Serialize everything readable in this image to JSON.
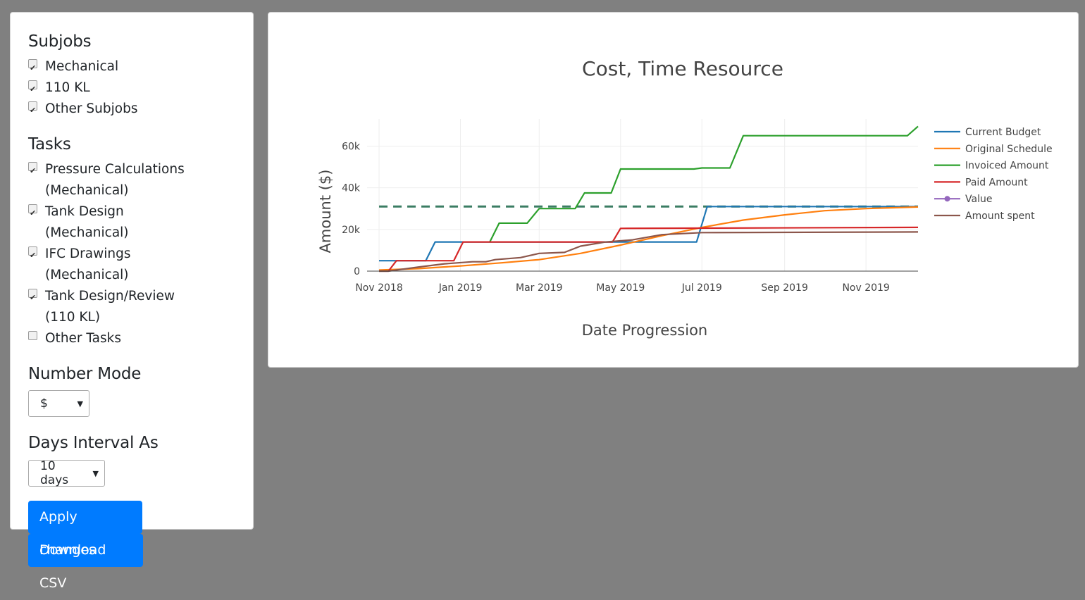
{
  "sidebar": {
    "subjobs": {
      "title": "Subjobs",
      "items": [
        {
          "label": "Mechanical",
          "checked": true
        },
        {
          "label": "110 KL",
          "checked": true
        },
        {
          "label": "Other Subjobs",
          "checked": true
        }
      ]
    },
    "tasks": {
      "title": "Tasks",
      "items": [
        {
          "label": "Pressure Calculations (Mechanical)",
          "checked": true
        },
        {
          "label": "Tank Design (Mechanical)",
          "checked": true
        },
        {
          "label": "IFC Drawings (Mechanical)",
          "checked": true
        },
        {
          "label": "Tank Design/Review (110 KL)",
          "checked": true
        },
        {
          "label": "Other Tasks",
          "checked": false
        }
      ]
    },
    "number_mode": {
      "title": "Number Mode",
      "selected": "$"
    },
    "days_interval": {
      "title": "Days Interval As",
      "selected": "10 days"
    },
    "buttons": {
      "apply": "Apply changes",
      "download": "Download CSV"
    }
  },
  "chart_data": {
    "type": "line",
    "title": "Cost, Time Resource",
    "xlabel": "Date Progression",
    "ylabel": "Amount ($)",
    "ylim": [
      0,
      73000
    ],
    "yticks": [
      0,
      20000,
      40000,
      60000
    ],
    "ytick_labels": [
      "0",
      "20k",
      "40k",
      "60k"
    ],
    "xtick_labels": [
      "Nov 2018",
      "Jan 2019",
      "Mar 2019",
      "May 2019",
      "Jul 2019",
      "Sep 2019",
      "Nov 2019"
    ],
    "x_range": [
      "2018-10-23",
      "2019-12-10"
    ],
    "grid": true,
    "legend_position": "right",
    "reference_line": {
      "value": 31000,
      "style": "dashed",
      "color": "#3b7d63"
    },
    "series": [
      {
        "name": "Current Budget",
        "color": "#1f77b4",
        "points": [
          [
            "2018-11-01",
            5000
          ],
          [
            "2018-12-06",
            5000
          ],
          [
            "2018-12-13",
            14000
          ],
          [
            "2019-06-27",
            14000
          ],
          [
            "2019-07-05",
            31000
          ],
          [
            "2019-12-10",
            31000
          ]
        ]
      },
      {
        "name": "Original Schedule",
        "color": "#ff7f0e",
        "points": [
          [
            "2018-11-01",
            500
          ],
          [
            "2018-12-01",
            1200
          ],
          [
            "2019-01-01",
            2500
          ],
          [
            "2019-02-01",
            4000
          ],
          [
            "2019-03-01",
            5500
          ],
          [
            "2019-04-01",
            8500
          ],
          [
            "2019-05-01",
            12500
          ],
          [
            "2019-06-01",
            17000
          ],
          [
            "2019-07-01",
            21000
          ],
          [
            "2019-08-01",
            24500
          ],
          [
            "2019-09-01",
            27000
          ],
          [
            "2019-10-01",
            29000
          ],
          [
            "2019-11-01",
            30000
          ],
          [
            "2019-12-10",
            30800
          ]
        ]
      },
      {
        "name": "Invoiced Amount",
        "color": "#2ca02c",
        "points": [
          [
            "2019-01-23",
            14000
          ],
          [
            "2019-01-30",
            23000
          ],
          [
            "2019-02-20",
            23000
          ],
          [
            "2019-03-01",
            30000
          ],
          [
            "2019-03-28",
            30000
          ],
          [
            "2019-04-04",
            37500
          ],
          [
            "2019-04-24",
            37500
          ],
          [
            "2019-05-01",
            49000
          ],
          [
            "2019-06-25",
            49000
          ],
          [
            "2019-07-01",
            49500
          ],
          [
            "2019-07-22",
            49500
          ],
          [
            "2019-08-01",
            65000
          ],
          [
            "2019-12-02",
            65000
          ],
          [
            "2019-12-10",
            69500
          ]
        ]
      },
      {
        "name": "Paid Amount",
        "color": "#d62728",
        "points": [
          [
            "2018-11-01",
            0
          ],
          [
            "2018-11-08",
            0
          ],
          [
            "2018-11-14",
            5000
          ],
          [
            "2018-12-27",
            5000
          ],
          [
            "2019-01-03",
            14000
          ],
          [
            "2019-04-25",
            14000
          ],
          [
            "2019-05-01",
            20500
          ],
          [
            "2019-12-10",
            21000
          ]
        ]
      },
      {
        "name": "Value",
        "color": "#9467bd",
        "marker": true,
        "points": []
      },
      {
        "name": "Amount spent",
        "color": "#8c564b",
        "points": [
          [
            "2018-11-01",
            0
          ],
          [
            "2018-11-08",
            0
          ],
          [
            "2018-12-01",
            2000
          ],
          [
            "2018-12-20",
            3500
          ],
          [
            "2019-01-10",
            4500
          ],
          [
            "2019-01-20",
            4500
          ],
          [
            "2019-01-27",
            5500
          ],
          [
            "2019-02-15",
            6500
          ],
          [
            "2019-03-01",
            8500
          ],
          [
            "2019-03-20",
            9000
          ],
          [
            "2019-04-01",
            12000
          ],
          [
            "2019-04-20",
            14000
          ],
          [
            "2019-05-10",
            15000
          ],
          [
            "2019-06-01",
            17500
          ],
          [
            "2019-07-01",
            18500
          ],
          [
            "2019-12-10",
            18800
          ]
        ]
      }
    ]
  }
}
